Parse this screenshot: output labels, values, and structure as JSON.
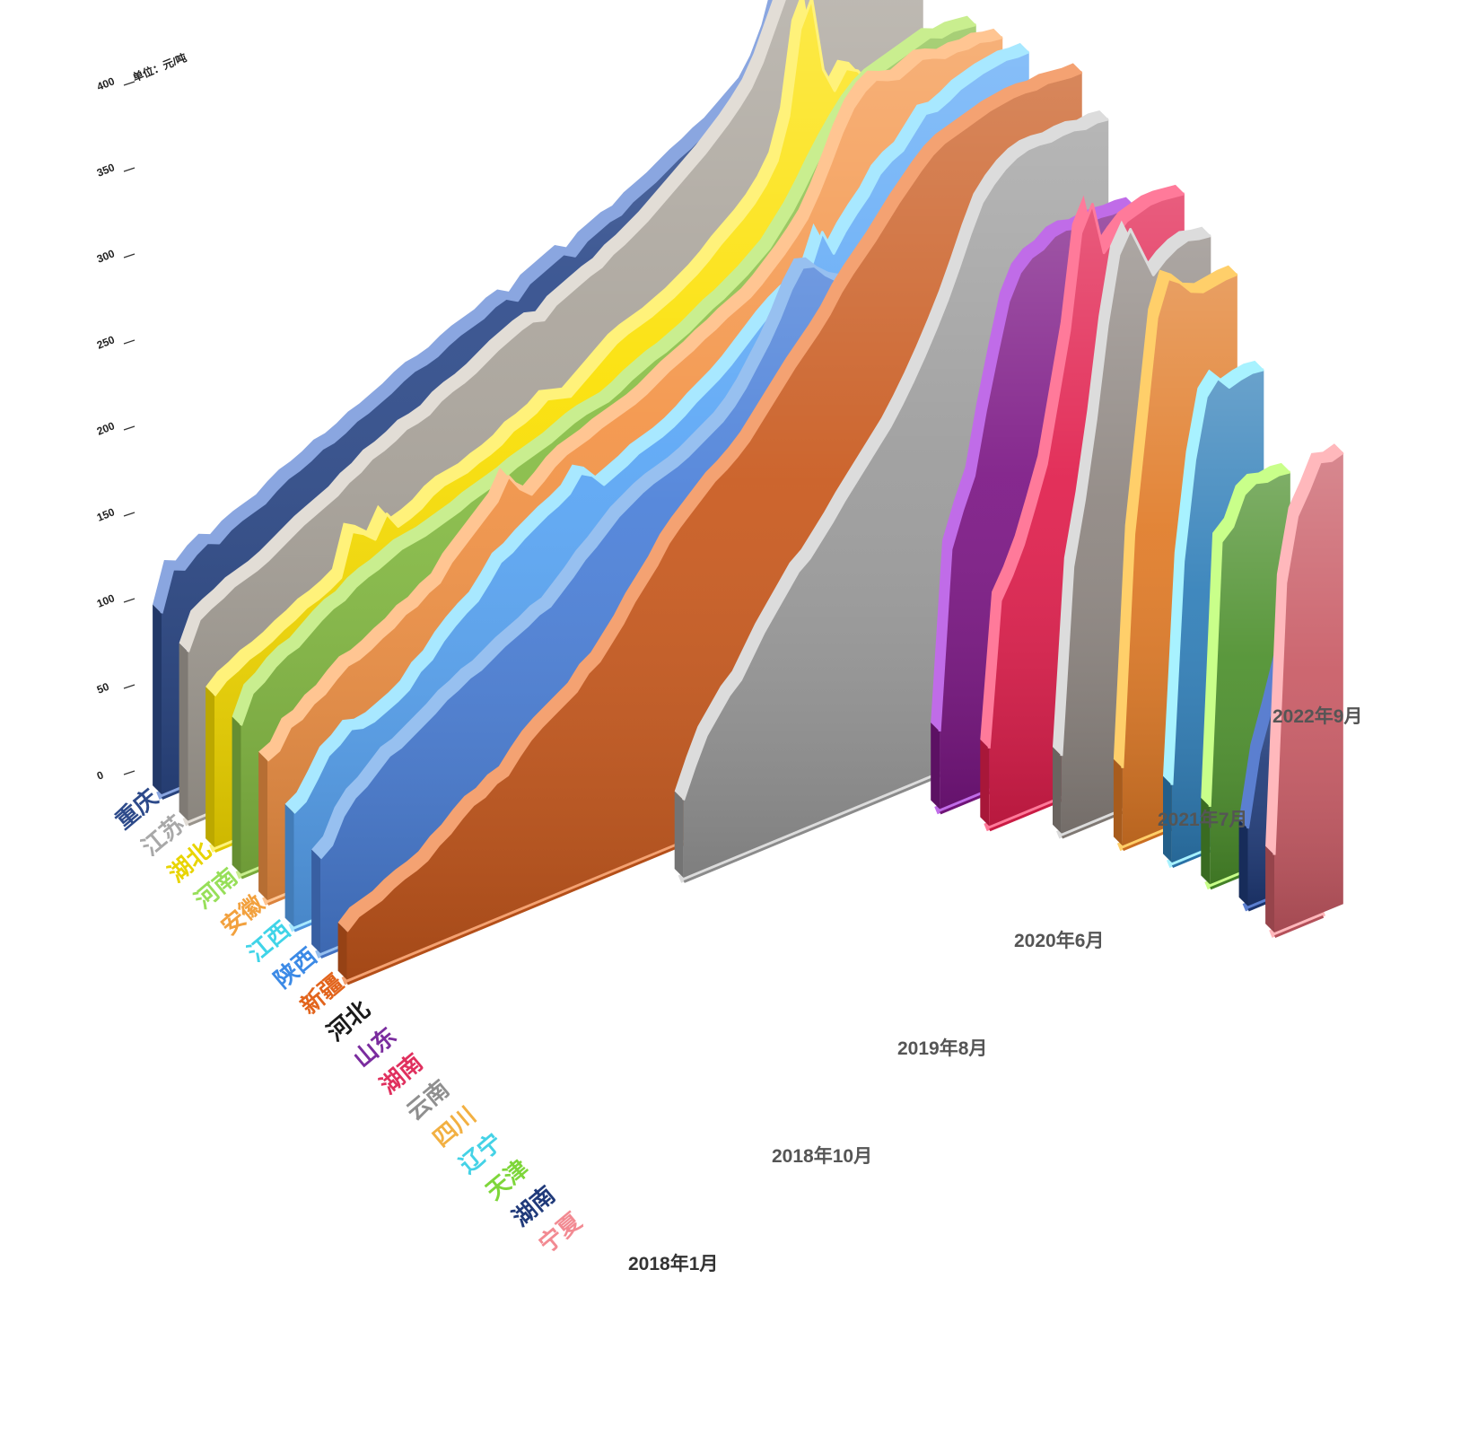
{
  "chart_data": {
    "type": "area",
    "title": "",
    "unit_label": "单位：元/吨",
    "yticks": [
      0,
      50,
      100,
      150,
      200,
      250,
      300,
      350,
      400
    ],
    "ylim": [
      0,
      400
    ],
    "x_labels": [
      "2018年1月",
      "2018年10月",
      "2019年8月",
      "2020年6月",
      "2021年7月",
      "2022年9月"
    ],
    "series": [
      {
        "name": "重庆",
        "color": "#2d4a8a",
        "edge": "#8aa6e0",
        "label_color": "#2d4a8a",
        "start": 0,
        "values": [
          105,
          128,
          125,
          131,
          135,
          132,
          137,
          140,
          142,
          144,
          149,
          153,
          155,
          158,
          162,
          163,
          166,
          170,
          172,
          175,
          178,
          182,
          185,
          186,
          188,
          192,
          195,
          197,
          199,
          203,
          205,
          201,
          208,
          211,
          214,
          217,
          213,
          219,
          222,
          225,
          226,
          231,
          234,
          237,
          241,
          245,
          248,
          252,
          255,
          260,
          265,
          270,
          280,
          295,
          318,
          340,
          352,
          366,
          380,
          372,
          362,
          365,
          367,
          360,
          358
        ]
      },
      {
        "name": "江苏",
        "color": "#a9a39a",
        "edge": "#e2ddd6",
        "label_color": "#a8a8a8",
        "start": 0,
        "values": [
          98,
          114,
          118,
          121,
          125,
          127,
          129,
          132,
          136,
          140,
          144,
          147,
          150,
          153,
          158,
          161,
          166,
          168,
          171,
          175,
          176,
          178,
          183,
          186,
          188,
          191,
          195,
          199,
          202,
          205,
          207,
          205,
          211,
          214,
          217,
          220,
          222,
          227,
          230,
          234,
          238,
          243,
          248,
          253,
          258,
          263,
          269,
          275,
          282,
          290,
          302,
          318,
          334,
          348,
          356,
          361,
          362,
          358,
          356,
          353,
          352,
          353,
          354,
          353,
          352
        ]
      },
      {
        "name": "湖北",
        "color": "#fbe000",
        "edge": "#fff27a",
        "label_color": "#e8d400",
        "start": 0,
        "values": [
          88,
          94,
          97,
          101,
          103,
          106,
          110,
          113,
          117,
          119,
          122,
          126,
          150,
          146,
          140,
          152,
          142,
          144,
          147,
          152,
          155,
          156,
          157,
          160,
          162,
          165,
          170,
          172,
          175,
          180,
          178,
          176,
          181,
          186,
          191,
          196,
          199,
          201,
          203,
          206,
          209,
          213,
          217,
          222,
          228,
          233,
          238,
          244,
          252,
          263,
          286,
          334,
          349,
          305,
          290,
          300,
          296,
          286,
          284,
          282,
          280,
          279,
          278,
          277,
          276
        ]
      },
      {
        "name": "河南",
        "color": "#86bd43",
        "edge": "#c9ee8f",
        "label_color": "#97df59",
        "start": 0,
        "values": [
          86,
          102,
          106,
          112,
          116,
          118,
          123,
          128,
          132,
          134,
          139,
          142,
          144,
          147,
          150,
          151,
          152,
          154,
          156,
          158,
          161,
          163,
          165,
          167,
          170,
          172,
          174,
          176,
          179,
          182,
          184,
          185,
          186,
          189,
          193,
          196,
          199,
          201,
          204,
          207,
          211,
          215,
          218,
          222,
          226,
          231,
          236,
          244,
          252,
          262,
          273,
          283,
          292,
          300,
          306,
          310,
          312,
          314,
          316,
          318,
          320,
          317,
          318,
          317,
          316
        ]
      },
      {
        "name": "安徽",
        "color": "#f39244",
        "edge": "#ffc592",
        "label_color": "#f2a13e",
        "start": 0,
        "values": [
          81,
          84,
          95,
          97,
          103,
          106,
          112,
          117,
          118,
          121,
          125,
          128,
          133,
          135,
          140,
          143,
          152,
          158,
          164,
          170,
          176,
          188,
          178,
          172,
          177,
          183,
          187,
          189,
          191,
          194,
          196,
          198,
          200,
          203,
          207,
          211,
          214,
          217,
          221,
          224,
          228,
          231,
          234,
          239,
          245,
          251,
          258,
          266,
          278,
          292,
          307,
          319,
          326,
          330,
          327,
          325,
          328,
          331,
          329,
          326,
          327,
          326,
          327,
          325,
          324
        ]
      },
      {
        "name": "江西",
        "color": "#58a5f5",
        "edge": "#a8e8ff",
        "label_color": "#40d4e8",
        "start": 0,
        "values": [
          66,
          70,
          80,
          91,
          95,
          101,
          99,
          100,
          103,
          106,
          110,
          118,
          122,
          130,
          136,
          141,
          145,
          153,
          162,
          165,
          170,
          174,
          178,
          181,
          185,
          194,
          190,
          182,
          185,
          188,
          192,
          194,
          196,
          199,
          203,
          208,
          212,
          216,
          221,
          227,
          233,
          239,
          244,
          248,
          251,
          258,
          276,
          261,
          271,
          279,
          286,
          296,
          301,
          304,
          312,
          320,
          319,
          322,
          326,
          328,
          330,
          331,
          332,
          331,
          331
        ]
      },
      {
        "name": "陕西",
        "color": "#4a7fd8",
        "edge": "#97c0f0",
        "label_color": "#3c8ae6",
        "start": 0,
        "values": [
          55,
          60,
          74,
          82,
          86,
          92,
          98,
          100,
          104,
          108,
          112,
          117,
          120,
          124,
          126,
          130,
          134,
          137,
          140,
          144,
          146,
          152,
          158,
          165,
          170,
          176,
          182,
          186,
          190,
          193,
          195,
          197,
          200,
          204,
          208,
          212,
          218,
          226,
          236,
          246,
          258,
          272,
          282,
          280,
          272,
          266,
          262,
          258,
          256,
          260,
          264,
          268,
          272,
          276,
          280,
          284,
          288,
          292,
          294,
          296,
          298,
          300,
          302,
          301,
          300
        ]
      },
      {
        "name": "新疆",
        "color": "#c8581c",
        "edge": "#f4a272",
        "label_color": "#e2641c",
        "start": 0,
        "values": [
          28,
          34,
          36,
          38,
          42,
          45,
          47,
          50,
          56,
          60,
          66,
          71,
          73,
          78,
          80,
          88,
          95,
          100,
          104,
          108,
          112,
          120,
          124,
          132,
          140,
          150,
          158,
          166,
          176,
          183,
          189,
          195,
          201,
          205,
          210,
          216,
          224,
          232,
          240,
          248,
          255,
          262,
          270,
          280,
          288,
          295,
          302,
          310,
          318,
          325,
          332,
          338,
          342,
          344,
          346,
          348,
          350,
          351,
          352,
          352,
          351,
          352,
          351,
          350,
          350
        ]
      },
      {
        "name": "河北",
        "color": "#9a9a9a",
        "edge": "#dcdcdc",
        "label_color": "#1a1a1a",
        "start": 27,
        "values": [
          45,
          62,
          77,
          86,
          95,
          101,
          112,
          123,
          132,
          141,
          150,
          155,
          163,
          171,
          180,
          188,
          196,
          204,
          212,
          222,
          233,
          245,
          258,
          272,
          288,
          305,
          320,
          328,
          334,
          338,
          340,
          340,
          339,
          340,
          340,
          338,
          339,
          338
        ]
      },
      {
        "name": "山东",
        "color": "#7b1684",
        "edge": "#c06ce8",
        "label_color": "#7a2c9e",
        "start": 47,
        "values": [
          45,
          148,
          168,
          185,
          220,
          250,
          278,
          292,
          298,
          300,
          305,
          306,
          304,
          305,
          305,
          304,
          304,
          303
        ]
      },
      {
        "name": "湖南",
        "color": "#e01e4c",
        "edge": "#ff7a9a",
        "label_color": "#e0305e",
        "start": 49,
        "values": [
          45,
          128,
          140,
          155,
          175,
          196,
          232,
          268,
          322,
          336,
          305,
          312,
          318,
          320,
          322,
          322,
          321,
          320
        ]
      },
      {
        "name": "云南",
        "color": "#8d8580",
        "edge": "#dcdcdc",
        "label_color": "#8f8f8f",
        "start": 53,
        "values": [
          45,
          152,
          188,
          232,
          284,
          322,
          334,
          318,
          302,
          308,
          312,
          314,
          312,
          311
        ]
      },
      {
        "name": "四川",
        "color": "#e07a26",
        "edge": "#ffcf6a",
        "label_color": "#f2b042",
        "start": 56,
        "values": [
          45,
          178,
          238,
          298,
          318,
          313,
          305,
          302,
          303,
          304,
          304
        ]
      },
      {
        "name": "辽宁",
        "color": "#2f7eb8",
        "edge": "#a8f2ff",
        "label_color": "#44d2e6",
        "start": 58,
        "values": [
          45,
          172,
          228,
          262,
          270,
          262,
          264,
          265,
          264
        ]
      },
      {
        "name": "天津",
        "color": "#4c8f2c",
        "edge": "#c9ff8a",
        "label_color": "#7ed63a",
        "start": 59,
        "values": [
          45,
          196,
          202,
          218,
          222,
          220,
          221,
          220
        ]
      },
      {
        "name": "湖南",
        "color": "#1f3a78",
        "edge": "#5b7fd0",
        "label_color": "#203a7a",
        "start": 60,
        "values": [
          45,
          86,
          108,
          132,
          134,
          132,
          132
        ]
      },
      {
        "name": "宁夏",
        "color": "#c85a64",
        "edge": "#ffb8bc",
        "label_color": "#f28a92",
        "start": 60,
        "values": [
          45,
          200,
          236,
          248,
          262,
          260,
          262
        ]
      }
    ]
  }
}
